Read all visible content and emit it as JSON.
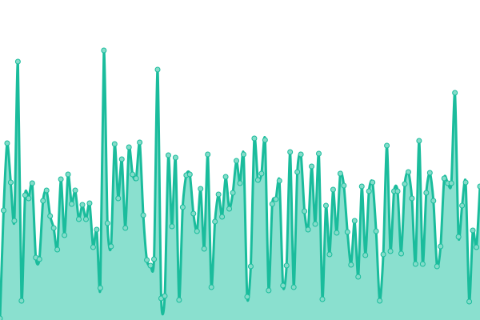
{
  "chart_data": {
    "type": "area",
    "title": "",
    "xlabel": "",
    "ylabel": "",
    "ylim": [
      0,
      400
    ],
    "grid": false,
    "legend": "none",
    "axes_visible": false,
    "markers": true,
    "colors": {
      "line": "#1abc9c",
      "fill": "#8ae0cf",
      "marker_fill": "#83dcc9",
      "marker_stroke": "#1abc9c"
    },
    "values": [
      2,
      137,
      221,
      172,
      124,
      323,
      24,
      156,
      152,
      171,
      78,
      76,
      149,
      162,
      130,
      115,
      88,
      176,
      106,
      182,
      145,
      162,
      126,
      144,
      126,
      146,
      91,
      113,
      40,
      337,
      121,
      92,
      220,
      152,
      201,
      115,
      216,
      182,
      177,
      222,
      131,
      75,
      68,
      76,
      313,
      27,
      30,
      206,
      117,
      203,
      25,
      141,
      181,
      182,
      133,
      111,
      164,
      89,
      207,
      41,
      123,
      157,
      129,
      179,
      139,
      159,
      199,
      171,
      207,
      29,
      67,
      227,
      175,
      183,
      225,
      37,
      145,
      151,
      174,
      43,
      68,
      210,
      41,
      185,
      207,
      136,
      113,
      192,
      120,
      208,
      26,
      143,
      82,
      163,
      109,
      183,
      168,
      110,
      69,
      124,
      54,
      167,
      81,
      161,
      172,
      111,
      24,
      82,
      218,
      86,
      161,
      161,
      83,
      170,
      185,
      152,
      70,
      224,
      70,
      159,
      184,
      149,
      67,
      92,
      177,
      171,
      171,
      284,
      104,
      143,
      172,
      23,
      112,
      91,
      167
    ]
  }
}
